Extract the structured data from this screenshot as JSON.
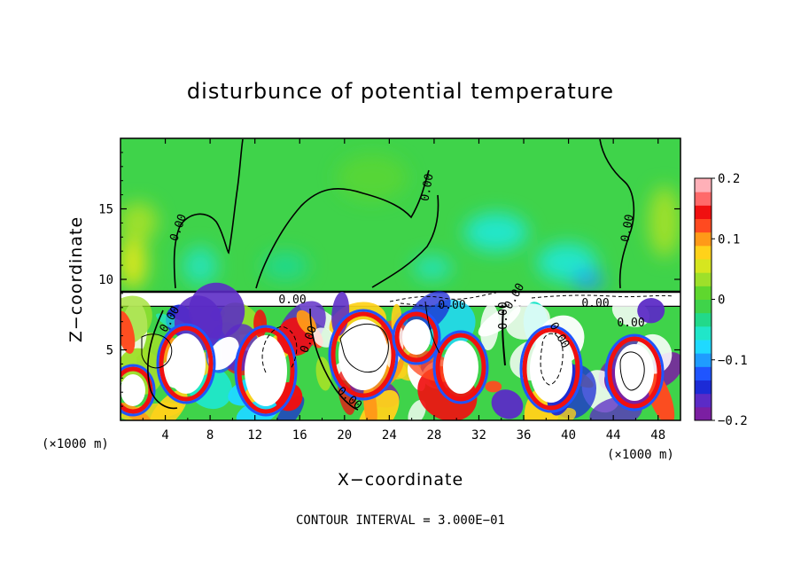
{
  "chart_data": {
    "type": "heatmap",
    "title": "disturbunce of potential temperature",
    "xlabel": "X−coordinate",
    "ylabel": "Z−coordinate",
    "x_unit": "(×1000 m)",
    "y_unit": "(×1000 m)",
    "xlim": [
      0,
      50
    ],
    "ylim": [
      0,
      20
    ],
    "x_ticks": [
      "4",
      "8",
      "12",
      "16",
      "20",
      "24",
      "28",
      "32",
      "36",
      "40",
      "44",
      "48"
    ],
    "x_tick_values": [
      4,
      8,
      12,
      16,
      20,
      24,
      28,
      32,
      36,
      40,
      44,
      48
    ],
    "y_ticks": [
      "5",
      "10",
      "15"
    ],
    "y_tick_values": [
      5,
      10,
      15
    ],
    "colorbar": {
      "min": -0.2,
      "max": 0.2,
      "tick_labels": [
        "0.2",
        "0.1",
        "0",
        "−0.1",
        "−0.2"
      ],
      "tick_values": [
        0.2,
        0.1,
        0,
        -0.1,
        -0.2
      ],
      "colors": [
        "#7b1fa2",
        "#5b2bc6",
        "#1c2bd6",
        "#1f55ff",
        "#1f9cff",
        "#1fd9ff",
        "#20e6c9",
        "#22d98a",
        "#3fd34a",
        "#5fd72e",
        "#9ee02a",
        "#d6e61f",
        "#ffd21a",
        "#ff9a18",
        "#ff4a20",
        "#f01010",
        "#ff6a6a",
        "#ffb0b8"
      ]
    },
    "contour_labels": [
      "0.00",
      "0.00",
      "0.00",
      "0.00",
      "0.00",
      "0.00",
      "0.00",
      "0.00",
      "0.00",
      "0.00",
      "0.00",
      "0.00",
      "0.00"
    ],
    "contour_interval_text": "CONTOUR INTERVAL = 3.000E−01"
  }
}
